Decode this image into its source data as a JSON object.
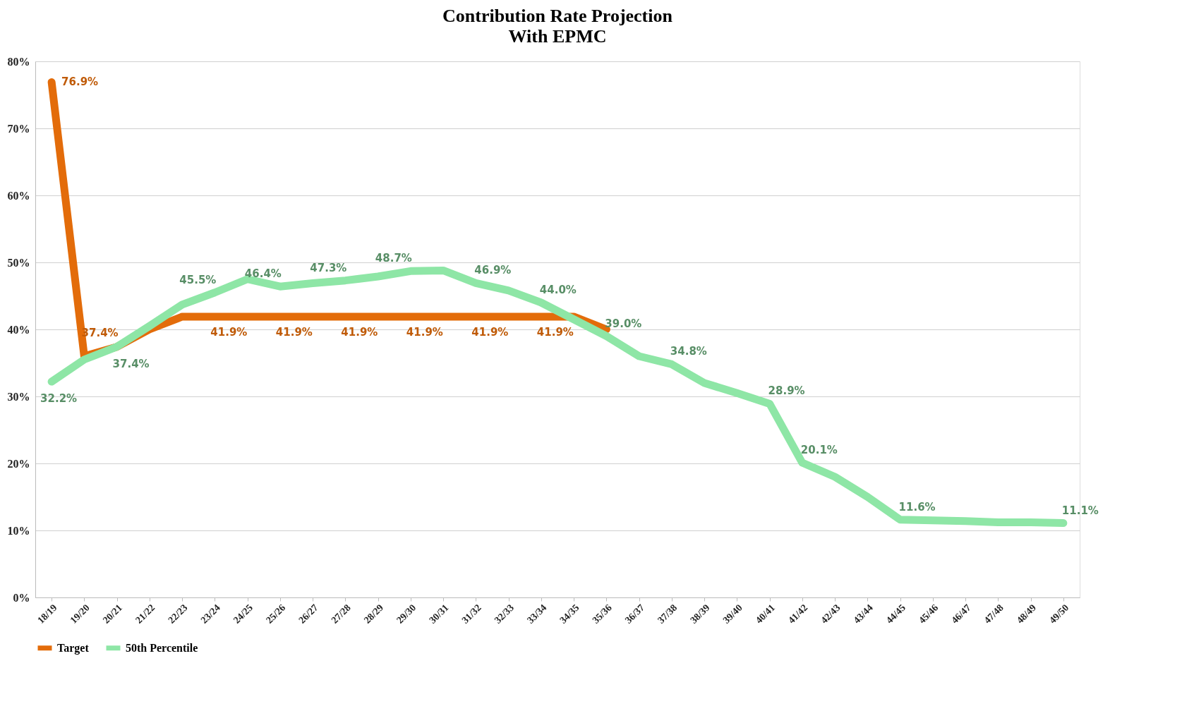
{
  "chart_data": {
    "type": "line",
    "title": "Contribution Rate Projection",
    "subtitle": "With EPMC",
    "categories": [
      "18/19",
      "19/20",
      "20/21",
      "21/22",
      "22/23",
      "23/24",
      "24/25",
      "25/26",
      "26/27",
      "27/28",
      "28/29",
      "29/30",
      "30/31",
      "31/32",
      "32/33",
      "33/34",
      "34/35",
      "35/36",
      "36/37",
      "37/38",
      "38/39",
      "39/40",
      "40/41",
      "41/42",
      "42/43",
      "43/44",
      "44/45",
      "45/46",
      "46/47",
      "47/48",
      "48/49",
      "49/50"
    ],
    "series": [
      {
        "name": "Target",
        "color": "#e36c0a",
        "values": [
          76.9,
          36.0,
          37.4,
          40.0,
          41.9,
          41.9,
          41.9,
          41.9,
          41.9,
          41.9,
          41.9,
          41.9,
          41.9,
          41.9,
          41.9,
          41.9,
          41.9,
          40.0,
          null,
          null,
          null,
          null,
          null,
          null,
          null,
          null,
          null,
          null,
          null,
          null,
          null,
          null
        ],
        "value_labels": [
          "76.9%",
          null,
          "37.4%",
          null,
          null,
          "41.9%",
          null,
          "41.9%",
          null,
          "41.9%",
          null,
          "41.9%",
          null,
          "41.9%",
          null,
          "41.9%",
          null,
          null,
          null,
          null,
          null,
          null,
          null,
          null,
          null,
          null,
          null,
          null,
          null,
          null,
          null,
          null
        ]
      },
      {
        "name": "50th Percentile",
        "color": "#8ee6a6",
        "values": [
          32.2,
          35.5,
          37.4,
          40.5,
          43.7,
          45.5,
          47.5,
          46.4,
          46.9,
          47.3,
          47.9,
          48.7,
          48.8,
          46.9,
          45.8,
          44.0,
          41.5,
          39.0,
          36.0,
          34.8,
          32.0,
          30.5,
          28.9,
          20.1,
          18.0,
          15.0,
          11.6,
          11.5,
          11.4,
          11.2,
          11.2,
          11.1
        ],
        "value_labels": [
          "32.2%",
          null,
          "37.4%",
          null,
          null,
          "45.5%",
          null,
          "46.4%",
          null,
          "47.3%",
          null,
          "48.7%",
          null,
          "46.9%",
          null,
          "44.0%",
          null,
          "39.0%",
          null,
          "34.8%",
          null,
          null,
          "28.9%",
          "20.1%",
          null,
          null,
          "11.6%",
          null,
          null,
          null,
          null,
          "11.1%"
        ]
      }
    ],
    "ylim": [
      0,
      80
    ],
    "yticks": [
      {
        "value": 0,
        "label": "0%"
      },
      {
        "value": 10,
        "label": "10%"
      },
      {
        "value": 20,
        "label": "20%"
      },
      {
        "value": 30,
        "label": "30%"
      },
      {
        "value": 40,
        "label": "40%"
      },
      {
        "value": 50,
        "label": "50%"
      },
      {
        "value": 60,
        "label": "60%"
      },
      {
        "value": 70,
        "label": "70%"
      },
      {
        "value": 80,
        "label": "80%"
      }
    ],
    "grid": "y",
    "legend": "bottom",
    "line_style": "solid",
    "marker": "none"
  }
}
